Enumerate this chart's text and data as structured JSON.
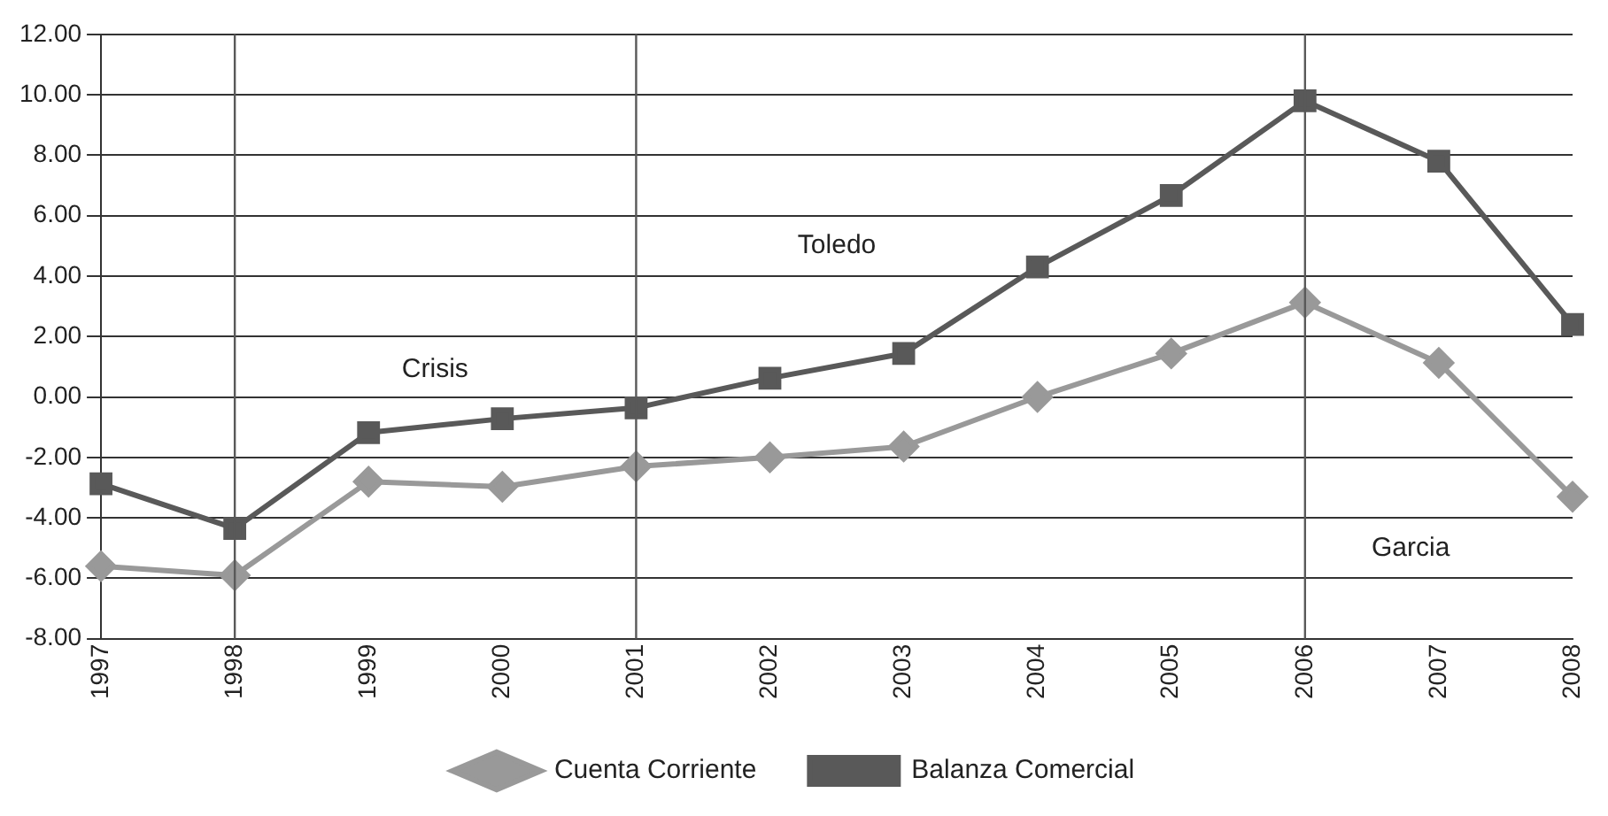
{
  "chart_data": {
    "type": "line",
    "categories": [
      "1997",
      "1998",
      "1999",
      "2000",
      "2001",
      "2002",
      "2003",
      "2004",
      "2005",
      "2006",
      "2007",
      "2008"
    ],
    "series": [
      {
        "name": "Cuenta Corriente",
        "color": "#999999",
        "marker": "diamond",
        "values": [
          -5.6,
          -5.9,
          -2.8,
          -2.97,
          -2.3,
          -2.0,
          -1.64,
          0.0,
          1.44,
          3.13,
          1.13,
          -3.3
        ]
      },
      {
        "name": "Balanza Comercial",
        "color": "#595959",
        "marker": "square",
        "values": [
          -2.87,
          -4.35,
          -1.18,
          -0.72,
          -0.36,
          0.62,
          1.44,
          4.3,
          6.67,
          9.8,
          7.8,
          2.4
        ]
      }
    ],
    "ylim": [
      -8,
      12
    ],
    "yticks": [
      {
        "value": -8,
        "label": "-8.00"
      },
      {
        "value": -6,
        "label": "-6.00"
      },
      {
        "value": -4,
        "label": "-4.00"
      },
      {
        "value": -2,
        "label": "-2.00"
      },
      {
        "value": 0,
        "label": "0.00"
      },
      {
        "value": 2,
        "label": "2.00"
      },
      {
        "value": 4,
        "label": "4.00"
      },
      {
        "value": 6,
        "label": "6.00"
      },
      {
        "value": 8,
        "label": "8.00"
      },
      {
        "value": 10,
        "label": "10.00"
      },
      {
        "value": 12,
        "label": "12.00"
      }
    ],
    "grid": "y",
    "legend": "bottom",
    "line_style": "solid",
    "ref_lines": [
      {
        "axis": "x",
        "value": "1998",
        "color": "#595959"
      },
      {
        "axis": "x",
        "value": "2001",
        "color": "#595959"
      },
      {
        "axis": "x",
        "value": "2006",
        "color": "#595959"
      }
    ],
    "annotations": [
      "Crisis",
      "Toledo",
      "Garcia"
    ]
  }
}
